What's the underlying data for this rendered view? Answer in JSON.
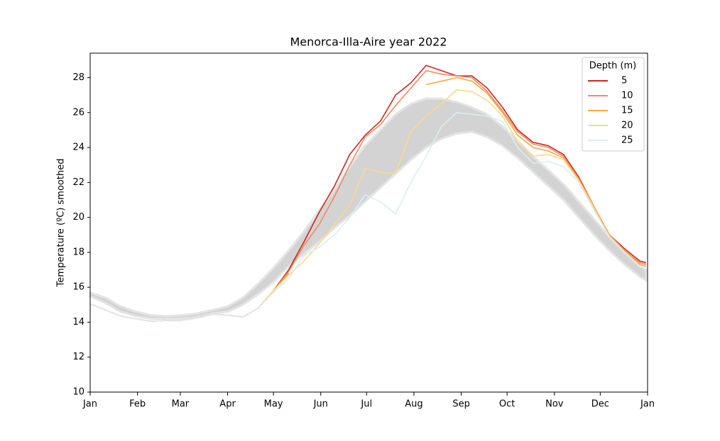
{
  "chart_data": {
    "type": "line",
    "title": "Menorca-Illa-Aire year 2022",
    "y_label": "Temperature (ºC) smoothed",
    "legend_title": "Depth (m)",
    "legend_position": "upper right",
    "x": [
      0,
      10,
      20,
      30,
      40,
      50,
      60,
      70,
      80,
      90,
      100,
      110,
      120,
      130,
      140,
      150,
      160,
      170,
      180,
      190,
      200,
      210,
      220,
      230,
      240,
      250,
      260,
      270,
      280,
      290,
      300,
      310,
      320,
      330,
      340,
      350,
      360,
      364
    ],
    "xlim": [
      0,
      365
    ],
    "xticks": [
      {
        "value": 0,
        "label": "Jan"
      },
      {
        "value": 31,
        "label": "Feb"
      },
      {
        "value": 59,
        "label": "Mar"
      },
      {
        "value": 90,
        "label": "Apr"
      },
      {
        "value": 120,
        "label": "May"
      },
      {
        "value": 151,
        "label": "Jun"
      },
      {
        "value": 181,
        "label": "Jul"
      },
      {
        "value": 212,
        "label": "Aug"
      },
      {
        "value": 243,
        "label": "Sep"
      },
      {
        "value": 273,
        "label": "Oct"
      },
      {
        "value": 304,
        "label": "Nov"
      },
      {
        "value": 334,
        "label": "Dec"
      },
      {
        "value": 365,
        "label": "Jan"
      }
    ],
    "ylim": [
      10,
      29.4
    ],
    "yticks": [
      10,
      12,
      14,
      16,
      18,
      20,
      22,
      24,
      26,
      28
    ],
    "band": {
      "color": "#d3d3d3",
      "lower": [
        15.5,
        15.1,
        14.6,
        14.35,
        14.2,
        14.2,
        14.2,
        14.3,
        14.5,
        14.6,
        15.0,
        15.6,
        16.3,
        17.2,
        17.9,
        18.6,
        19.4,
        20.1,
        20.9,
        21.7,
        22.5,
        23.3,
        24.0,
        24.5,
        24.8,
        24.9,
        24.6,
        24.1,
        23.4,
        22.6,
        21.8,
        21.0,
        20.0,
        19.0,
        18.1,
        17.3,
        16.6,
        16.4
      ],
      "upper": [
        15.7,
        15.4,
        14.9,
        14.6,
        14.4,
        14.35,
        14.4,
        14.5,
        14.7,
        14.9,
        15.4,
        16.2,
        17.1,
        18.1,
        19.2,
        20.4,
        21.6,
        22.9,
        24.1,
        25.0,
        25.9,
        26.5,
        26.8,
        26.8,
        26.6,
        26.3,
        25.9,
        25.2,
        24.4,
        23.5,
        22.7,
        21.9,
        20.9,
        19.9,
        18.9,
        18.0,
        17.2,
        17.0
      ]
    },
    "series": [
      {
        "name": "5",
        "color": "#c8291f",
        "values": [
          15.05,
          14.7,
          14.35,
          14.2,
          14.05,
          14.1,
          14.1,
          14.25,
          14.45,
          14.4,
          14.3,
          14.8,
          15.8,
          17.0,
          18.6,
          20.3,
          21.8,
          23.6,
          24.7,
          25.5,
          27.0,
          27.7,
          28.7,
          28.4,
          28.1,
          28.1,
          27.4,
          26.3,
          25.0,
          24.3,
          24.1,
          23.6,
          22.3,
          20.6,
          19.0,
          18.2,
          17.5,
          17.4
        ]
      },
      {
        "name": "10",
        "color": "#f08a5e",
        "values": [
          15.05,
          14.7,
          14.35,
          14.2,
          14.05,
          14.1,
          14.1,
          14.25,
          14.45,
          14.4,
          14.3,
          14.8,
          15.8,
          16.9,
          18.4,
          19.6,
          21.2,
          23.0,
          24.6,
          25.3,
          26.4,
          27.4,
          28.4,
          28.2,
          28.1,
          28.0,
          27.2,
          26.1,
          24.9,
          24.2,
          24.0,
          23.5,
          22.2,
          20.6,
          19.0,
          18.1,
          17.4,
          17.3
        ]
      },
      {
        "name": "15",
        "color": "#f8a64b",
        "values": [
          15.05,
          14.7,
          14.35,
          14.2,
          14.05,
          14.1,
          14.1,
          14.25,
          14.45,
          14.4,
          14.3,
          14.8,
          15.8,
          16.8,
          null,
          null,
          null,
          null,
          null,
          null,
          null,
          null,
          27.6,
          27.8,
          28.0,
          27.8,
          27.1,
          26.0,
          24.7,
          24.0,
          23.8,
          23.4,
          22.2,
          20.6,
          19.0,
          18.1,
          17.3,
          17.2
        ]
      },
      {
        "name": "20",
        "color": "#fbd98a",
        "values": [
          15.05,
          14.7,
          14.35,
          14.2,
          14.05,
          14.1,
          14.1,
          14.25,
          14.45,
          14.4,
          14.3,
          14.8,
          15.8,
          16.7,
          17.5,
          18.5,
          19.6,
          20.7,
          22.8,
          22.6,
          22.5,
          24.9,
          25.8,
          26.5,
          27.3,
          27.2,
          26.7,
          25.8,
          24.3,
          23.5,
          23.6,
          23.3,
          22.1,
          20.5,
          18.9,
          18.0,
          17.2,
          17.1
        ]
      },
      {
        "name": "25",
        "color": "#d9eef5",
        "values": [
          15.05,
          14.7,
          14.35,
          14.2,
          14.05,
          14.1,
          14.1,
          14.25,
          14.45,
          14.4,
          14.3,
          14.8,
          15.7,
          16.5,
          17.8,
          18.3,
          19.0,
          20.0,
          21.3,
          20.9,
          20.2,
          22.0,
          23.5,
          25.2,
          26.0,
          25.9,
          25.8,
          25.5,
          24.0,
          23.1,
          23.2,
          22.9,
          22.0,
          20.4,
          18.9,
          18.0,
          17.2,
          17.1
        ]
      }
    ]
  }
}
